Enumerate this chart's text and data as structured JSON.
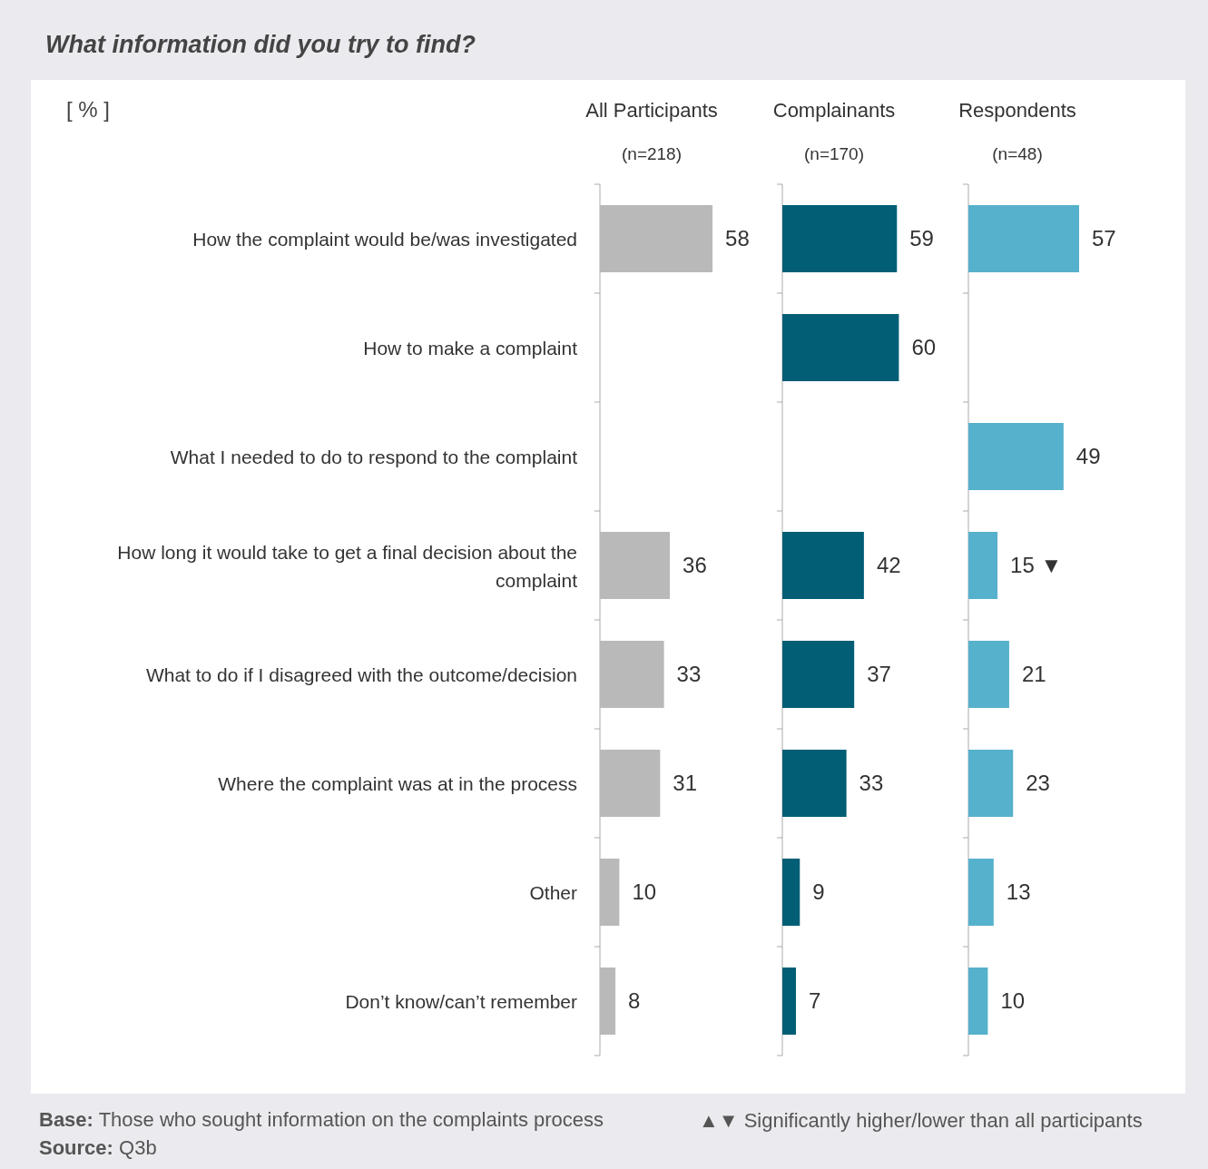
{
  "chart_data": [
    {
      "type": "bar",
      "orientation": "horizontal",
      "title": "All Participants",
      "subtitle": "(n=218)",
      "categories": [
        "How the complaint would be/was investigated",
        "How to make a complaint",
        "What I needed to do to respond to the complaint",
        "How long it would take to get a final decision about the complaint",
        "What to do if I disagreed with the outcome/decision",
        "Where the complaint was at in the process",
        "Other",
        "Don’t know/can’t remember"
      ],
      "series": [
        {
          "color": "#b9b9b9",
          "values": [
            58,
            null,
            null,
            36,
            33,
            31,
            10,
            8
          ]
        }
      ],
      "data_labels": true,
      "tick_labels": "y",
      "annotations": [
        "What information did you try to find?",
        "[ % ]",
        "Base: Those who sought information on the complaints process",
        "Source: Q3b",
        "▲▼ Significantly higher/lower than all participants"
      ]
    },
    {
      "type": "bar",
      "orientation": "horizontal",
      "title": "Complainants",
      "subtitle": "(n=170)",
      "series": [
        {
          "color": "#015e75",
          "values": [
            59,
            60,
            null,
            42,
            37,
            33,
            9,
            7
          ]
        }
      ],
      "data_labels": true,
      "tick_labels": false
    },
    {
      "type": "bar",
      "orientation": "horizontal",
      "title": "Respondents",
      "subtitle": "(n=48)",
      "series": [
        {
          "color": "#56b1cc",
          "values": [
            57,
            null,
            49,
            15,
            21,
            23,
            13,
            10
          ],
          "value_labels": [
            "57",
            null,
            "49",
            "15 ▼",
            "21",
            "23",
            "13",
            "10"
          ]
        }
      ],
      "tick_labels": false
    }
  ]
}
